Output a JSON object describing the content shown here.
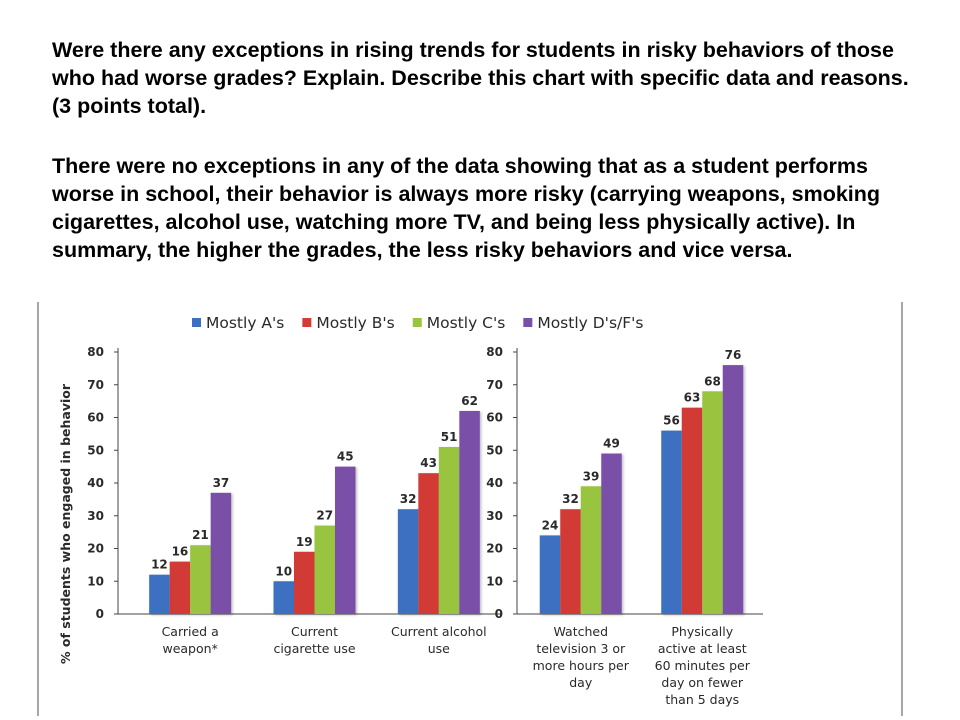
{
  "question": "Were there any exceptions in rising trends for students in risky behaviors of those who had worse grades?  Explain.  Describe this chart with specific data and reasons. (3 points total).",
  "answer": "There were no exceptions in any of the data showing that as a student performs worse in school, their behavior is always more risky (carrying weapons, smoking cigarettes, alcohol use, watching more TV, and being less physically active).  In summary, the higher the grades, the less risky behaviors and vice versa.",
  "chart_data": {
    "type": "bar",
    "title": "",
    "xlabel": "",
    "ylabel": "% of students who engaged in behavior",
    "ylim": [
      0,
      80
    ],
    "yticks": [
      0,
      10,
      20,
      30,
      40,
      50,
      60,
      70,
      80
    ],
    "legend_position": "top",
    "grid": false,
    "groups": [
      {
        "categories": [
          [
            "Carried a",
            "weapon*"
          ],
          [
            "Current",
            "cigarette use"
          ],
          [
            "Current alcohol",
            "use"
          ]
        ]
      },
      {
        "categories": [
          [
            "Watched",
            "television 3 or",
            "more hours per",
            "day"
          ],
          [
            "Physically",
            "active at least",
            "60 minutes per",
            "day on fewer",
            "than 5 days"
          ]
        ]
      }
    ],
    "series": [
      {
        "name": "Mostly A's",
        "color": "#3c6fc0",
        "values": [
          12,
          10,
          32,
          24,
          56
        ]
      },
      {
        "name": "Mostly B's",
        "color": "#d23b36",
        "values": [
          16,
          19,
          43,
          32,
          63
        ]
      },
      {
        "name": "Mostly C's",
        "color": "#98c440",
        "values": [
          21,
          27,
          51,
          39,
          68
        ]
      },
      {
        "name": "Mostly D's/F's",
        "color": "#7a4fa7",
        "values": [
          37,
          45,
          62,
          49,
          76
        ]
      }
    ]
  }
}
